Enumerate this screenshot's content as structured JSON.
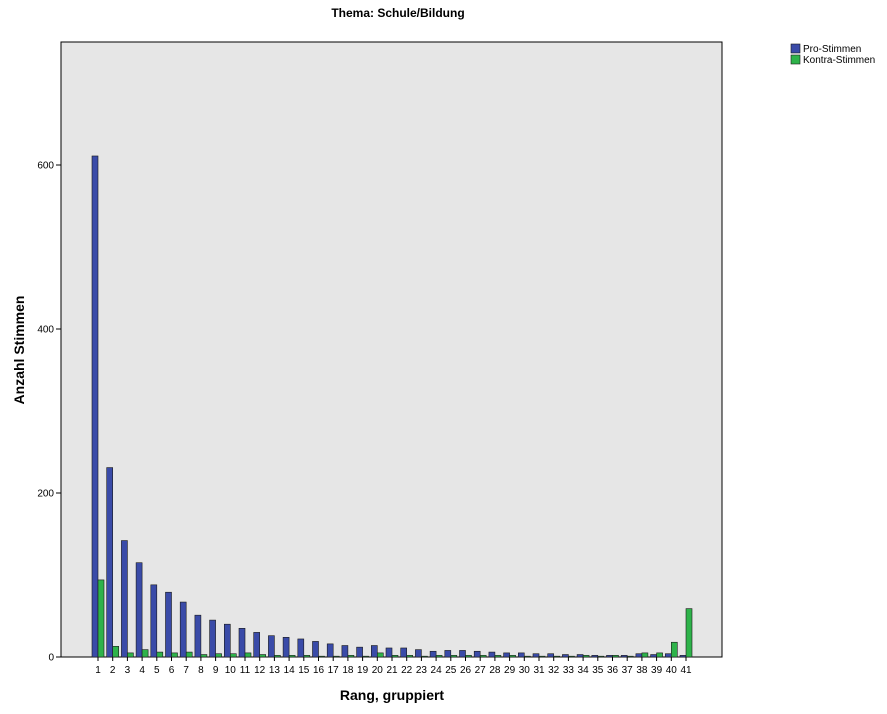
{
  "chart_data": {
    "type": "bar",
    "title": "Thema: Schule/Bildung",
    "xlabel": "Rang, gruppiert",
    "ylabel": "Anzahl Stimmen",
    "ylim": [
      0,
      750
    ],
    "yticks": [
      0,
      200,
      400,
      600
    ],
    "grid": false,
    "legend_position": "top-right",
    "categories": [
      "1",
      "2",
      "3",
      "4",
      "5",
      "6",
      "7",
      "8",
      "9",
      "10",
      "11",
      "12",
      "13",
      "14",
      "15",
      "16",
      "17",
      "18",
      "19",
      "20",
      "21",
      "22",
      "23",
      "24",
      "25",
      "26",
      "27",
      "28",
      "29",
      "30",
      "31",
      "32",
      "33",
      "34",
      "35",
      "36",
      "37",
      "38",
      "39",
      "40",
      "41"
    ],
    "series": [
      {
        "name": "Pro-Stimmen",
        "color": "#3a4ba8",
        "values": [
          611,
          231,
          142,
          115,
          88,
          79,
          67,
          51,
          45,
          40,
          35,
          30,
          26,
          24,
          22,
          19,
          16,
          14,
          12,
          14,
          11,
          11,
          9,
          7,
          8,
          8,
          7,
          6,
          5,
          5,
          4,
          4,
          3,
          3,
          2,
          2,
          2,
          4,
          3,
          4,
          2
        ]
      },
      {
        "name": "Kontra-Stimmen",
        "color": "#2eb34a",
        "values": [
          94,
          13,
          5,
          9,
          6,
          5,
          6,
          3,
          4,
          4,
          5,
          3,
          2,
          2,
          2,
          1,
          1,
          2,
          1,
          5,
          2,
          2,
          1,
          2,
          2,
          2,
          2,
          2,
          2,
          1,
          1,
          1,
          1,
          2,
          1,
          2,
          1,
          5,
          5,
          18,
          59
        ]
      }
    ]
  },
  "colors": {
    "plot_background": "#e6e6e6",
    "plot_border": "#000000",
    "bar_outline": "#1a1a1a"
  }
}
